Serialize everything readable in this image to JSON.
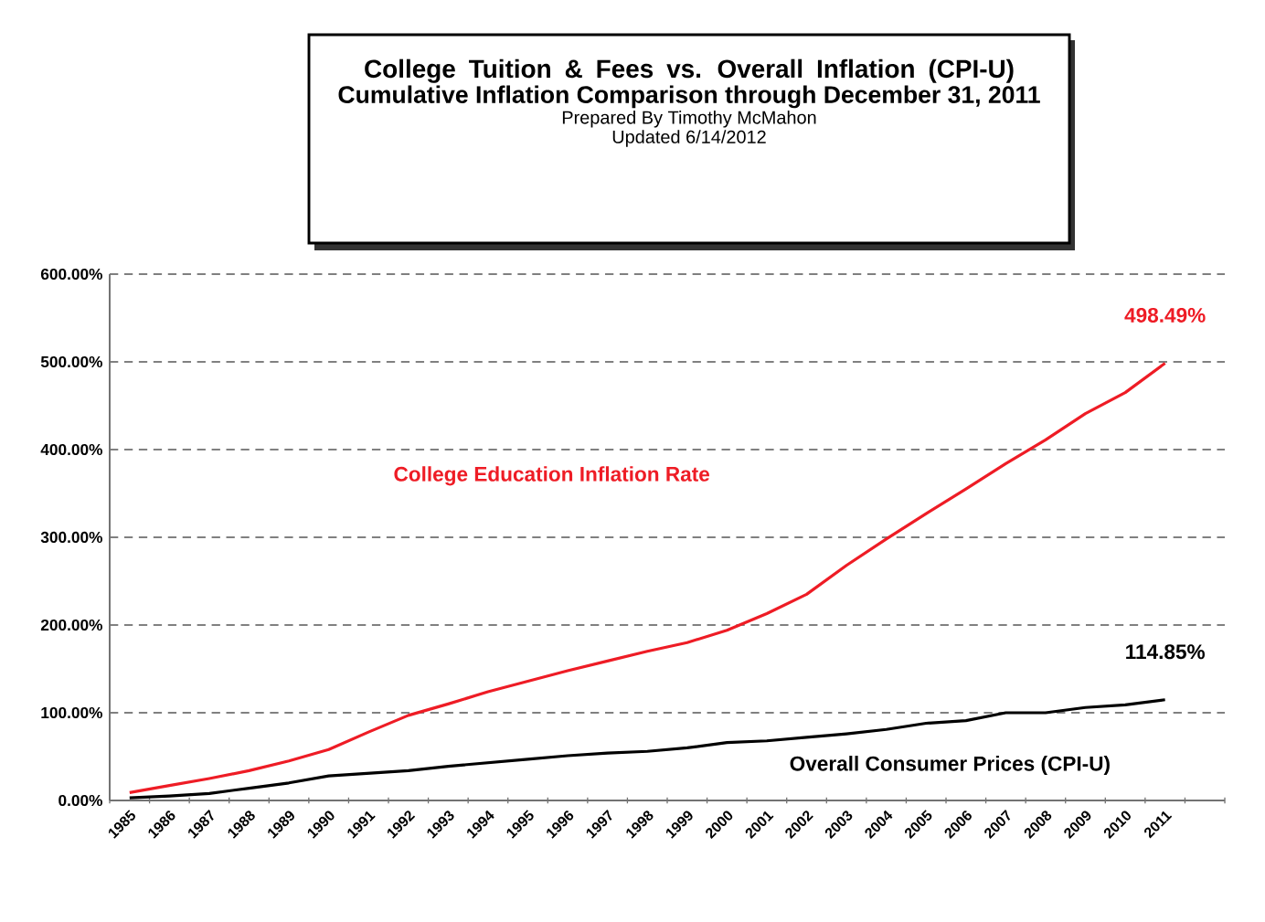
{
  "chart_data": {
    "type": "line",
    "title": "College Tuition & Fees vs. Overall Inflation (CPI-U)",
    "subtitle": "Cumulative Inflation Comparison through December 31, 2011",
    "annotations": [
      "Prepared By Timothy McMahon",
      "Updated 6/14/2012"
    ],
    "categories": [
      "1985",
      "1986",
      "1987",
      "1988",
      "1989",
      "1990",
      "1991",
      "1992",
      "1993",
      "1994",
      "1995",
      "1996",
      "1997",
      "1998",
      "1999",
      "2000",
      "2001",
      "2002",
      "2003",
      "2004",
      "2005",
      "2006",
      "2007",
      "2008",
      "2009",
      "2010",
      "2011"
    ],
    "series": [
      {
        "name": "College Education Inflation Rate",
        "color": "#ee1c25",
        "values": [
          9,
          17,
          25,
          34,
          45,
          58,
          78,
          97,
          110,
          124,
          136,
          148,
          159,
          170,
          180,
          194,
          213,
          235,
          268,
          298,
          327,
          355,
          384,
          411,
          441,
          465,
          498.49
        ],
        "value_labels": [
          null,
          null,
          null,
          null,
          null,
          null,
          null,
          null,
          null,
          null,
          null,
          null,
          null,
          null,
          null,
          null,
          null,
          null,
          null,
          null,
          null,
          null,
          null,
          null,
          null,
          null,
          "498.49%"
        ]
      },
      {
        "name": "Overall Consumer Prices (CPI-U)",
        "color": "#000000",
        "values": [
          3,
          5,
          8,
          14,
          20,
          28,
          31,
          34,
          39,
          43,
          47,
          51,
          54,
          56,
          60,
          66,
          68,
          72,
          76,
          81,
          88,
          91,
          100,
          100,
          106,
          109,
          114.85
        ],
        "value_labels": [
          null,
          null,
          null,
          null,
          null,
          null,
          null,
          null,
          null,
          null,
          null,
          null,
          null,
          null,
          null,
          null,
          null,
          null,
          null,
          null,
          null,
          null,
          null,
          null,
          null,
          null,
          "114.85%"
        ]
      }
    ],
    "ylim": [
      0,
      600
    ],
    "yticks": [
      {
        "value": 0,
        "label": "0.00%"
      },
      {
        "value": 100,
        "label": "100.00%"
      },
      {
        "value": 200,
        "label": "200.00%"
      },
      {
        "value": 300,
        "label": "300.00%"
      },
      {
        "value": 400,
        "label": "400.00%"
      },
      {
        "value": 500,
        "label": "500.00%"
      },
      {
        "value": 600,
        "label": "600.00%"
      }
    ],
    "grid": "y",
    "legend": false,
    "marker": "none",
    "line_style": "solid"
  }
}
